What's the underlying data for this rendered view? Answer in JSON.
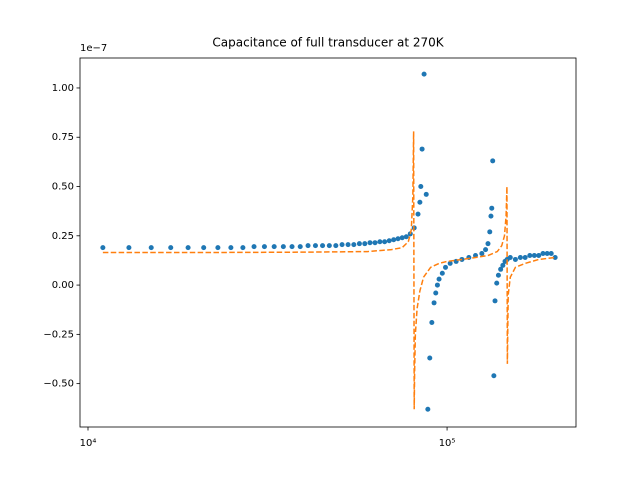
{
  "chart_data": {
    "type": "scatter",
    "title": "Capacitance of full transducer at 270K",
    "y_offset_label": "1e−7",
    "log_x": true,
    "xlim": [
      9500,
      228600
    ],
    "xticks": [
      {
        "value": 10000,
        "label": "10⁴"
      },
      {
        "value": 100000,
        "label": "10⁵"
      }
    ],
    "ylim": [
      -0.72,
      1.152
    ],
    "yticks": [
      {
        "value": -0.5,
        "label": "−0.50"
      },
      {
        "value": -0.25,
        "label": "−0.25"
      },
      {
        "value": 0,
        "label": "0.00"
      },
      {
        "value": 0.25,
        "label": "0.25"
      },
      {
        "value": 0.5,
        "label": "0.50"
      },
      {
        "value": 0.75,
        "label": "0.75"
      },
      {
        "value": 1,
        "label": "1.00"
      }
    ],
    "series": [
      {
        "type": "scatter",
        "color": "#1f77b4",
        "x": [
          11000,
          13000,
          15000,
          17000,
          19000,
          21000,
          23000,
          25000,
          27000,
          29000,
          31000,
          33000,
          35000,
          37000,
          39000,
          41000,
          43000,
          45000,
          47000,
          49000,
          51000,
          53000,
          55000,
          57000,
          59000,
          61000,
          63000,
          65000,
          67000,
          69000,
          71000,
          73000,
          75000,
          77000,
          79000,
          81000,
          83000,
          84000,
          84500,
          85200,
          86300,
          87500,
          88400,
          89500,
          90700,
          92000,
          93000,
          94000,
          95000,
          97000,
          99000,
          102000,
          106000,
          110000,
          115000,
          120000,
          125000,
          128000,
          130000,
          131500,
          132500,
          133200,
          134000,
          135000,
          136000,
          137500,
          139000,
          141000,
          143000,
          145000,
          147000,
          150000,
          155000,
          160000,
          165000,
          170000,
          175000,
          180000,
          185000,
          190000,
          195000,
          200000
        ],
        "values": [
          0.19,
          0.19,
          0.19,
          0.19,
          0.19,
          0.19,
          0.19,
          0.19,
          0.19,
          0.195,
          0.195,
          0.195,
          0.195,
          0.195,
          0.195,
          0.2,
          0.2,
          0.2,
          0.2,
          0.2,
          0.205,
          0.205,
          0.205,
          0.21,
          0.21,
          0.215,
          0.215,
          0.22,
          0.22,
          0.225,
          0.23,
          0.235,
          0.24,
          0.245,
          0.26,
          0.29,
          0.36,
          0.42,
          0.5,
          0.69,
          1.07,
          0.46,
          -0.63,
          -0.37,
          -0.19,
          -0.09,
          -0.04,
          0,
          0.03,
          0.06,
          0.09,
          0.11,
          0.12,
          0.13,
          0.14,
          0.15,
          0.16,
          0.18,
          0.21,
          0.27,
          0.35,
          0.39,
          0.63,
          -0.46,
          -0.08,
          0.01,
          0.05,
          0.08,
          0.1,
          0.12,
          0.13,
          0.14,
          0.13,
          0.14,
          0.14,
          0.15,
          0.15,
          0.15,
          0.16,
          0.16,
          0.16,
          0.14
        ]
      },
      {
        "type": "line",
        "dashed": true,
        "color": "#ff7f0e",
        "x": [
          11000,
          20000,
          40000,
          60000,
          70000,
          75000,
          78000,
          79500,
          80300,
          80700,
          81000,
          81200,
          81600,
          82500,
          84000,
          86000,
          90000,
          95000,
          100000,
          110000,
          120000,
          130000,
          138000,
          142000,
          144500,
          146000,
          146800,
          147200,
          148000,
          150000,
          155000,
          165000,
          180000,
          200000
        ],
        "values": [
          0.165,
          0.165,
          0.167,
          0.17,
          0.18,
          0.19,
          0.22,
          0.28,
          0.45,
          0.78,
          -0.63,
          -0.45,
          -0.25,
          -0.12,
          -0.03,
          0.04,
          0.09,
          0.11,
          0.12,
          0.13,
          0.14,
          0.15,
          0.17,
          0.2,
          0.25,
          0.35,
          0.5,
          -0.4,
          -0.05,
          0.04,
          0.09,
          0.11,
          0.13,
          0.14
        ]
      }
    ]
  }
}
